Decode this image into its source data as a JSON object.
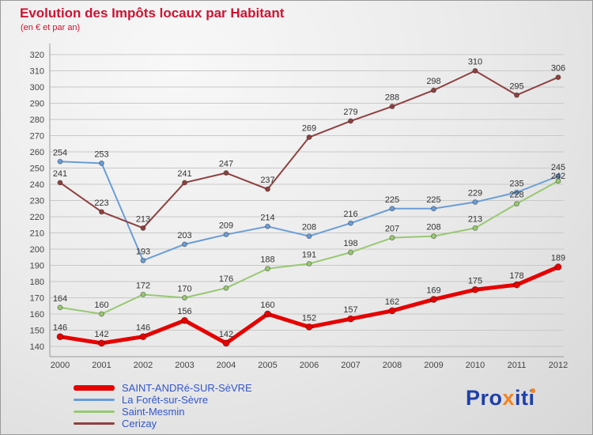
{
  "header": {
    "title": "Evolution des Impôts locaux par Habitant",
    "subtitle": "(en € et par an)"
  },
  "chart_data": {
    "type": "line",
    "title": "Evolution des Impôts locaux par Habitant",
    "subtitle": "(en € et par an)",
    "xlabel": "",
    "ylabel": "",
    "ylim": [
      140,
      320
    ],
    "ytick_step": 10,
    "grid": true,
    "legend_position": "bottom-left",
    "categories": [
      "2000",
      "2001",
      "2002",
      "2003",
      "2004",
      "2005",
      "2006",
      "2007",
      "2008",
      "2009",
      "2010",
      "2011",
      "2012"
    ],
    "series": [
      {
        "name": "SAINT-ANDRé-SUR-SèVRE",
        "color": "#e60000",
        "thick": true,
        "values": [
          146,
          142,
          146,
          156,
          142,
          160,
          152,
          157,
          162,
          169,
          175,
          178,
          189
        ]
      },
      {
        "name": "La Forêt-sur-Sèvre",
        "color": "#6a9dd6",
        "thick": false,
        "values": [
          254,
          253,
          193,
          203,
          209,
          214,
          208,
          216,
          225,
          225,
          229,
          235,
          245
        ]
      },
      {
        "name": "Saint-Mesmin",
        "color": "#98c872",
        "thick": false,
        "values": [
          164,
          160,
          172,
          170,
          176,
          188,
          191,
          198,
          207,
          208,
          213,
          228,
          242
        ]
      },
      {
        "name": "Cerizay",
        "color": "#8e4040",
        "thick": false,
        "values": [
          241,
          223,
          213,
          241,
          247,
          237,
          269,
          279,
          288,
          298,
          310,
          295,
          306
        ]
      }
    ]
  },
  "colors": {
    "title": "#cc1433",
    "legend_text": "#3355cc",
    "grid": "#c8c8c8",
    "axis": "#999999",
    "value_label": "#333333",
    "logo_blue": "#1f3faa",
    "logo_orange": "#f58220"
  },
  "logo": {
    "part1": "Pro",
    "part2": "x",
    "part3": "it",
    "part4": "i"
  }
}
